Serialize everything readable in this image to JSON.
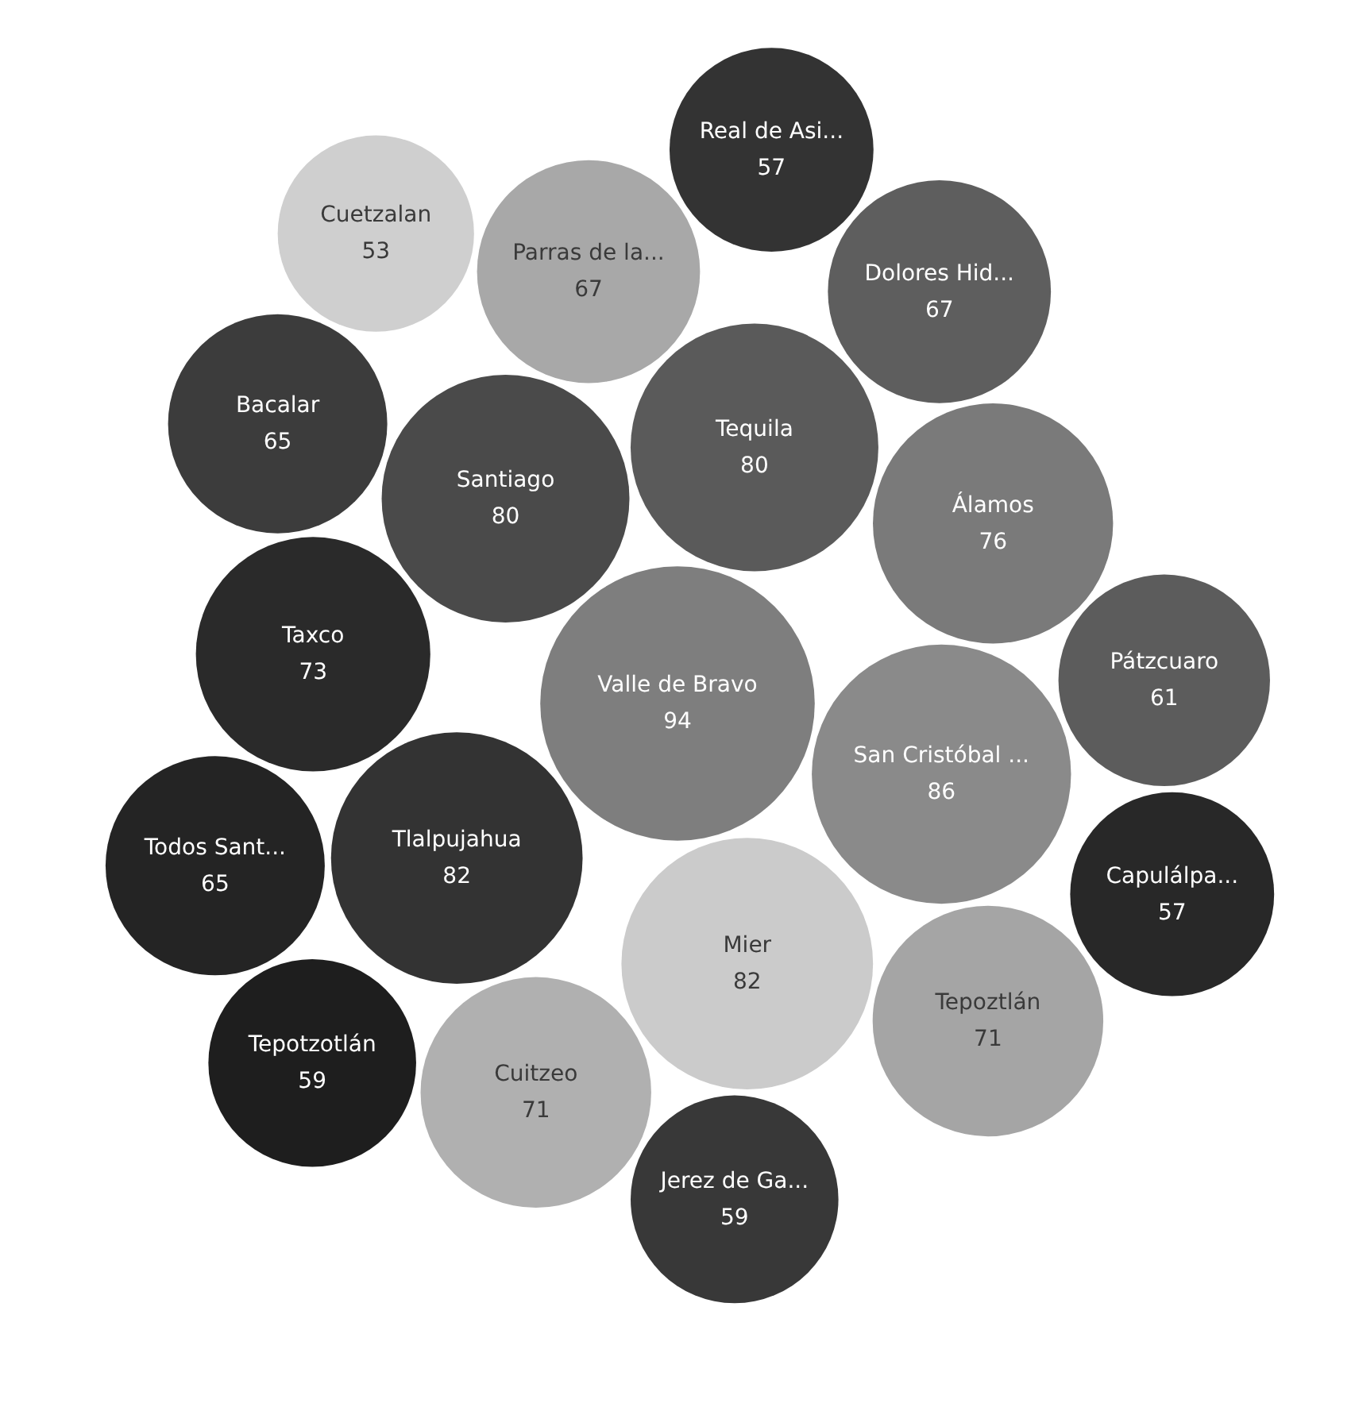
{
  "chart_data": {
    "type": "other",
    "categories": [
      "Jerez de Ga...",
      "Capulálpa...",
      "Bacalar",
      "Cuetzalan",
      "Valle de Bravo",
      "Mier",
      "Álamos",
      "Todos Sant...",
      "Real de Asi...",
      "San Cristóbal ...",
      "Santiago",
      "Cuitzeo",
      "Tlalpujahua",
      "Tequila",
      "Parras de la...",
      "Taxco",
      "Tepotzotlán",
      "Dolores Hid...",
      "Tepoztlán",
      "Pátzcuaro"
    ],
    "values": [
      59,
      57,
      65,
      53,
      94,
      82,
      76,
      65,
      57,
      86,
      80,
      71,
      82,
      80,
      67,
      73,
      59,
      67,
      71,
      61
    ],
    "colors": [
      "#383838",
      "#282828",
      "#3c3c3c",
      "#cfcfcf",
      "#7e7e7e",
      "#cbcbcb",
      "#7a7a7a",
      "#242424",
      "#333333",
      "#8a8a8a",
      "#4a4a4a",
      "#b0b0b0",
      "#333333",
      "#5a5a5a",
      "#a8a8a8",
      "#2a2a2a",
      "#1e1e1e",
      "#5e5e5e",
      "#a5a5a5",
      "#5c5c5c"
    ],
    "data_labels": true
  }
}
